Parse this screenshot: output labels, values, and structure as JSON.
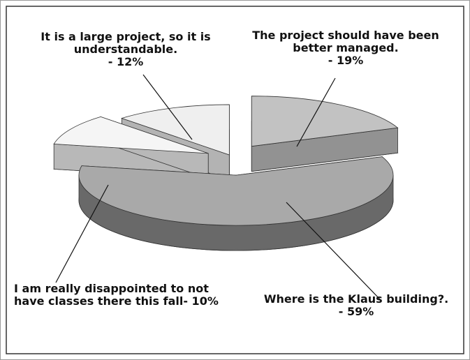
{
  "chart_data": {
    "type": "pie3d",
    "categories": [
      "The project should have been better managed.",
      "Where is the Klaus building?.",
      "I am really disappointed to not have classes there this fall",
      "It is a large project, so it is understandable."
    ],
    "values": [
      19,
      59,
      10,
      12
    ],
    "value_labels": [
      "- 19%",
      "- 59%",
      "- 10%",
      "- 12%"
    ],
    "colors": [
      "#c2c2c2",
      "#a9a9a9",
      "#f5f5f5",
      "#efefef"
    ]
  }
}
